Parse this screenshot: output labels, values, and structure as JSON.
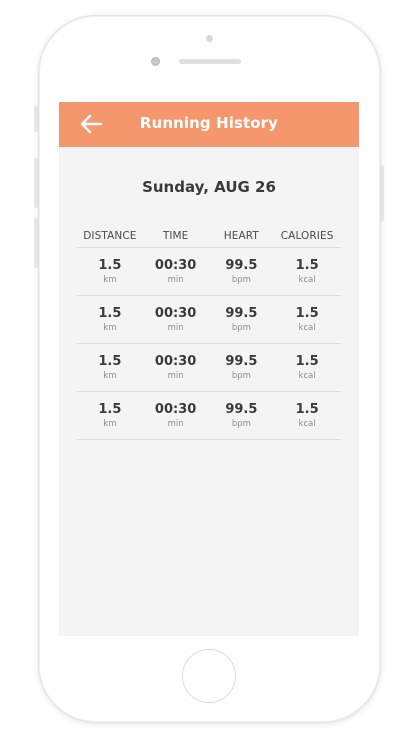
{
  "app_bar": {
    "title": "Running History",
    "back_icon": "arrow-left-icon",
    "color": "#f4976c"
  },
  "date_heading": "Sunday, AUG 26",
  "table": {
    "columns": [
      "DISTANCE",
      "TIME",
      "HEART",
      "CALORIES"
    ],
    "rows": [
      {
        "distance": {
          "value": "1.5",
          "unit": "km"
        },
        "time": {
          "value": "00:30",
          "unit": "min"
        },
        "heart": {
          "value": "99.5",
          "unit": "bpm"
        },
        "calories": {
          "value": "1.5",
          "unit": "kcal"
        }
      },
      {
        "distance": {
          "value": "1.5",
          "unit": "km"
        },
        "time": {
          "value": "00:30",
          "unit": "min"
        },
        "heart": {
          "value": "99.5",
          "unit": "bpm"
        },
        "calories": {
          "value": "1.5",
          "unit": "kcal"
        }
      },
      {
        "distance": {
          "value": "1.5",
          "unit": "km"
        },
        "time": {
          "value": "00:30",
          "unit": "min"
        },
        "heart": {
          "value": "99.5",
          "unit": "bpm"
        },
        "calories": {
          "value": "1.5",
          "unit": "kcal"
        }
      },
      {
        "distance": {
          "value": "1.5",
          "unit": "km"
        },
        "time": {
          "value": "00:30",
          "unit": "min"
        },
        "heart": {
          "value": "99.5",
          "unit": "bpm"
        },
        "calories": {
          "value": "1.5",
          "unit": "kcal"
        }
      }
    ]
  }
}
